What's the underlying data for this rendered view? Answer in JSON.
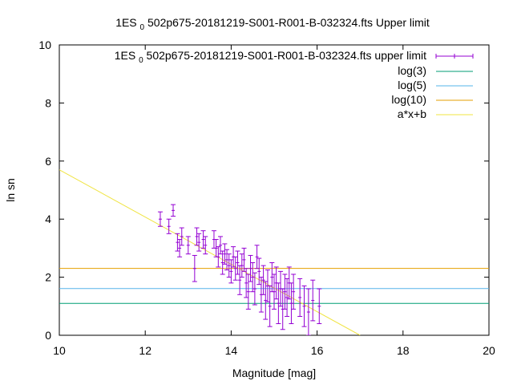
{
  "chart_data": {
    "type": "scatter",
    "title": "1ES 0 502p675-20181219-S001-R001-B-032324.fts Upper limit",
    "title_parts": {
      "pre": "1ES",
      "sub": "0",
      "post": "502p675-20181219-S001-R001-B-032324.fts Upper limit"
    },
    "xlabel": "Magnitude [mag]",
    "ylabel": "ln sn",
    "xlim": [
      10,
      20
    ],
    "ylim": [
      0,
      10
    ],
    "xticks": [
      "10",
      "12",
      "14",
      "16",
      "18",
      "20"
    ],
    "yticks": [
      "0",
      "2",
      "4",
      "6",
      "8",
      "10"
    ],
    "legend_position": "top-right",
    "colors": {
      "points": "#9400d3",
      "log3": "#009e73",
      "log5": "#56b4e9",
      "log10": "#e69f00",
      "fit": "#f0e442",
      "axis": "#000000"
    },
    "series": [
      {
        "name": "1ES 0 502p675-20181219-S001-R001-B-032324.fts upper limit",
        "name_parts": {
          "pre": "1ES",
          "sub": "0",
          "post": "502p675-20181219-S001-R001-B-032324.fts upper limit"
        },
        "kind": "errorbar",
        "points": [
          [
            12.35,
            4.0,
            0.25
          ],
          [
            12.55,
            3.75,
            0.25
          ],
          [
            12.65,
            4.3,
            0.2
          ],
          [
            12.75,
            3.2,
            0.3
          ],
          [
            12.8,
            3.0,
            0.3
          ],
          [
            12.85,
            3.4,
            0.3
          ],
          [
            13.0,
            3.1,
            0.3
          ],
          [
            13.15,
            2.3,
            0.45
          ],
          [
            13.2,
            3.4,
            0.3
          ],
          [
            13.25,
            3.2,
            0.3
          ],
          [
            13.35,
            3.3,
            0.3
          ],
          [
            13.4,
            3.1,
            0.3
          ],
          [
            13.6,
            3.3,
            0.3
          ],
          [
            13.65,
            3.0,
            0.3
          ],
          [
            13.7,
            2.7,
            0.35
          ],
          [
            13.75,
            3.1,
            0.3
          ],
          [
            13.8,
            2.5,
            0.4
          ],
          [
            13.85,
            2.8,
            0.35
          ],
          [
            13.9,
            2.6,
            0.35
          ],
          [
            13.95,
            2.4,
            0.4
          ],
          [
            14.0,
            2.2,
            0.4
          ],
          [
            14.05,
            2.7,
            0.35
          ],
          [
            14.1,
            2.3,
            0.4
          ],
          [
            14.15,
            2.5,
            0.4
          ],
          [
            14.2,
            1.9,
            0.5
          ],
          [
            14.25,
            2.4,
            0.4
          ],
          [
            14.3,
            2.6,
            0.4
          ],
          [
            14.35,
            1.8,
            0.5
          ],
          [
            14.4,
            1.5,
            0.6
          ],
          [
            14.45,
            2.3,
            0.45
          ],
          [
            14.5,
            2.0,
            0.5
          ],
          [
            14.55,
            1.6,
            0.55
          ],
          [
            14.6,
            2.7,
            0.4
          ],
          [
            14.65,
            2.2,
            0.45
          ],
          [
            14.7,
            1.4,
            0.6
          ],
          [
            14.75,
            1.9,
            0.5
          ],
          [
            14.8,
            1.2,
            0.65
          ],
          [
            14.85,
            1.7,
            0.55
          ],
          [
            14.9,
            1.0,
            0.7
          ],
          [
            14.95,
            2.0,
            0.5
          ],
          [
            15.0,
            1.5,
            0.6
          ],
          [
            15.05,
            1.8,
            0.55
          ],
          [
            15.1,
            1.1,
            0.7
          ],
          [
            15.15,
            1.6,
            0.6
          ],
          [
            15.2,
            0.9,
            0.7
          ],
          [
            15.25,
            1.5,
            0.6
          ],
          [
            15.3,
            1.3,
            0.65
          ],
          [
            15.35,
            1.8,
            0.55
          ],
          [
            15.4,
            1.1,
            0.7
          ],
          [
            15.45,
            1.5,
            0.6
          ],
          [
            15.6,
            1.3,
            0.65
          ],
          [
            15.7,
            1.0,
            0.7
          ],
          [
            15.8,
            0.8,
            0.8
          ],
          [
            15.9,
            1.2,
            0.7
          ],
          [
            16.05,
            1.0,
            0.6
          ]
        ]
      },
      {
        "name": "log(3)",
        "kind": "hline",
        "y": 1.0986
      },
      {
        "name": "log(5)",
        "kind": "hline",
        "y": 1.6094
      },
      {
        "name": "log(10)",
        "kind": "hline",
        "y": 2.3026
      },
      {
        "name": "a*x+b",
        "kind": "line",
        "points": [
          [
            10,
            5.7
          ],
          [
            17.0,
            0
          ]
        ]
      }
    ]
  }
}
